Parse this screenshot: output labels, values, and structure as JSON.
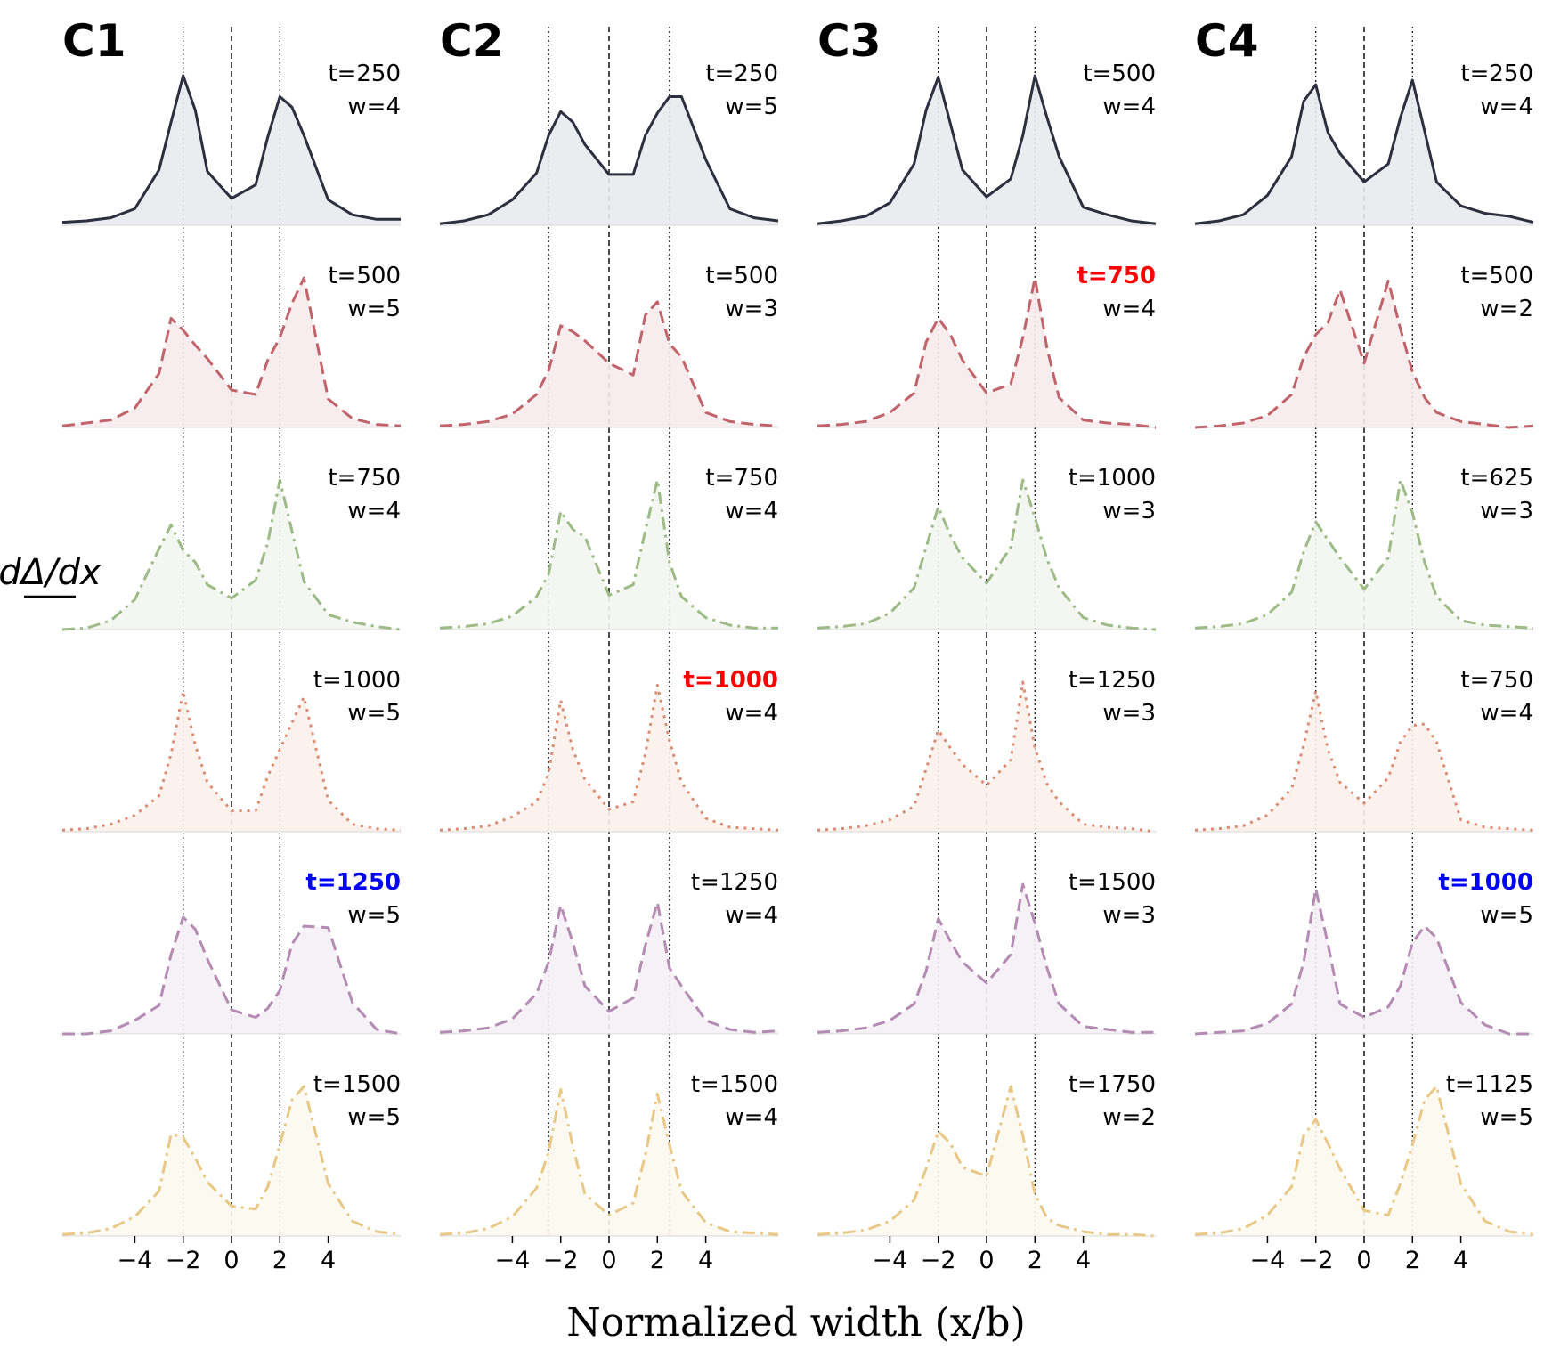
{
  "chart_data": {
    "type": "line",
    "xlabel": "Normalized width (x/b)",
    "ylabel": "dΔ/dx",
    "xlim": [
      -7,
      7
    ],
    "x_ticks": [
      -4,
      -2,
      0,
      2,
      4
    ],
    "x_tick_labels": [
      "−4",
      "−2",
      "0",
      "2",
      "4"
    ],
    "grid": false,
    "row_styles": [
      {
        "color": "#2b2f3e",
        "dash": "solid",
        "fill": "#e9eaee"
      },
      {
        "color": "#c0636b",
        "dash": "dashed",
        "fill": "#f6ebec"
      },
      {
        "color": "#9dba87",
        "dash": "dashdot",
        "fill": "#f3f6ef"
      },
      {
        "color": "#d98c73",
        "dash": "dotted",
        "fill": "#fbefeb"
      },
      {
        "color": "#b38bb3",
        "dash": "dashed",
        "fill": "#f5eff5"
      },
      {
        "color": "#e8c886",
        "dash": "dashdot",
        "fill": "#fcf8ee"
      }
    ],
    "highlight_colors": {
      "red": "#ff0000",
      "blue": "#0000ff"
    },
    "x": [
      -7,
      -6,
      -5,
      -4,
      -3,
      -2.5,
      -2,
      -1.5,
      -1,
      0,
      1,
      1.5,
      2,
      2.5,
      3,
      4,
      5,
      6,
      7
    ],
    "panels": [
      {
        "label": "C1",
        "vlines": [
          -2,
          0,
          2
        ],
        "rows": [
          {
            "t": "t=250",
            "w": "w=4",
            "highlight": null,
            "y": [
              0.02,
              0.03,
              0.05,
              0.11,
              0.37,
              0.69,
              1.0,
              0.77,
              0.36,
              0.18,
              0.27,
              0.59,
              0.86,
              0.79,
              0.6,
              0.17,
              0.07,
              0.04,
              0.04
            ]
          },
          {
            "t": "t=500",
            "w": "w=5",
            "highlight": null,
            "y": [
              0.01,
              0.03,
              0.05,
              0.13,
              0.36,
              0.73,
              0.65,
              0.55,
              0.46,
              0.25,
              0.22,
              0.45,
              0.6,
              0.83,
              1.0,
              0.19,
              0.06,
              0.02,
              0.01
            ]
          },
          {
            "t": "t=750",
            "w": "w=4",
            "highlight": null,
            "y": [
              0.0,
              0.01,
              0.06,
              0.2,
              0.54,
              0.7,
              0.53,
              0.45,
              0.3,
              0.21,
              0.33,
              0.58,
              1.0,
              0.66,
              0.32,
              0.1,
              0.05,
              0.02,
              0.0
            ]
          },
          {
            "t": "t=1000",
            "w": "w=5",
            "highlight": null,
            "y": [
              0.01,
              0.02,
              0.05,
              0.11,
              0.24,
              0.52,
              0.94,
              0.58,
              0.33,
              0.14,
              0.14,
              0.37,
              0.55,
              0.73,
              0.9,
              0.21,
              0.05,
              0.02,
              0.01
            ]
          },
          {
            "t": "t=1250",
            "w": "w=5",
            "highlight": "blue",
            "y": [
              0.0,
              0.0,
              0.02,
              0.09,
              0.19,
              0.53,
              0.78,
              0.7,
              0.5,
              0.16,
              0.11,
              0.17,
              0.29,
              0.6,
              0.72,
              0.71,
              0.21,
              0.03,
              0.0
            ]
          },
          {
            "t": "t=1500",
            "w": "w=5",
            "highlight": null,
            "y": [
              0.01,
              0.02,
              0.05,
              0.13,
              0.3,
              0.68,
              0.66,
              0.52,
              0.36,
              0.2,
              0.18,
              0.33,
              0.61,
              0.91,
              1.0,
              0.35,
              0.1,
              0.03,
              0.01
            ]
          }
        ]
      },
      {
        "label": "C2",
        "vlines": [
          -2.5,
          0,
          2.5
        ],
        "rows": [
          {
            "t": "t=250",
            "w": "w=5",
            "highlight": null,
            "y": [
              0.01,
              0.03,
              0.07,
              0.17,
              0.35,
              0.6,
              0.76,
              0.69,
              0.54,
              0.34,
              0.34,
              0.6,
              0.75,
              0.86,
              0.86,
              0.44,
              0.11,
              0.05,
              0.03
            ]
          },
          {
            "t": "t=500",
            "w": "w=3",
            "highlight": null,
            "y": [
              0.01,
              0.02,
              0.04,
              0.09,
              0.22,
              0.38,
              0.68,
              0.64,
              0.58,
              0.43,
              0.35,
              0.75,
              0.84,
              0.56,
              0.47,
              0.1,
              0.04,
              0.02,
              0.01
            ]
          },
          {
            "t": "t=750",
            "w": "w=4",
            "highlight": null,
            "y": [
              0.01,
              0.02,
              0.04,
              0.09,
              0.22,
              0.37,
              0.79,
              0.67,
              0.62,
              0.23,
              0.3,
              0.66,
              1.0,
              0.45,
              0.22,
              0.08,
              0.03,
              0.01,
              0.01
            ]
          },
          {
            "t": "t=1000",
            "w": "w=4",
            "highlight": "red",
            "y": [
              0.01,
              0.02,
              0.04,
              0.1,
              0.2,
              0.39,
              0.88,
              0.55,
              0.35,
              0.15,
              0.2,
              0.52,
              0.98,
              0.61,
              0.33,
              0.09,
              0.03,
              0.02,
              0.01
            ]
          },
          {
            "t": "t=1250",
            "w": "w=4",
            "highlight": null,
            "y": [
              0.01,
              0.02,
              0.04,
              0.1,
              0.27,
              0.48,
              0.86,
              0.61,
              0.32,
              0.15,
              0.24,
              0.59,
              0.88,
              0.44,
              0.32,
              0.09,
              0.03,
              0.01,
              0.02
            ]
          },
          {
            "t": "t=1500",
            "w": "w=4",
            "highlight": null,
            "y": [
              0.01,
              0.02,
              0.05,
              0.13,
              0.32,
              0.56,
              0.98,
              0.6,
              0.28,
              0.14,
              0.22,
              0.54,
              0.95,
              0.61,
              0.3,
              0.09,
              0.03,
              0.02,
              0.01
            ]
          }
        ]
      },
      {
        "label": "C3",
        "vlines": [
          -2,
          0,
          2
        ],
        "rows": [
          {
            "t": "t=500",
            "w": "w=4",
            "highlight": null,
            "y": [
              0.01,
              0.03,
              0.06,
              0.15,
              0.41,
              0.77,
              0.99,
              0.68,
              0.37,
              0.19,
              0.31,
              0.6,
              1.0,
              0.72,
              0.46,
              0.12,
              0.07,
              0.03,
              0.01
            ]
          },
          {
            "t": "t=750",
            "w": "w=4",
            "highlight": "red",
            "y": [
              0.01,
              0.02,
              0.04,
              0.1,
              0.23,
              0.57,
              0.73,
              0.62,
              0.45,
              0.23,
              0.29,
              0.6,
              1.0,
              0.53,
              0.2,
              0.05,
              0.03,
              0.02,
              0.0
            ]
          },
          {
            "t": "t=1000",
            "w": "w=3",
            "highlight": null,
            "y": [
              0.01,
              0.02,
              0.04,
              0.11,
              0.28,
              0.55,
              0.82,
              0.63,
              0.48,
              0.31,
              0.55,
              1.0,
              0.75,
              0.47,
              0.28,
              0.08,
              0.03,
              0.01,
              0.0
            ]
          },
          {
            "t": "t=1250",
            "w": "w=3",
            "highlight": null,
            "y": [
              0.01,
              0.02,
              0.04,
              0.08,
              0.17,
              0.42,
              0.68,
              0.56,
              0.45,
              0.31,
              0.48,
              1.0,
              0.56,
              0.32,
              0.2,
              0.05,
              0.03,
              0.02,
              0.0
            ]
          },
          {
            "t": "t=1500",
            "w": "w=3",
            "highlight": null,
            "y": [
              0.01,
              0.02,
              0.04,
              0.09,
              0.2,
              0.42,
              0.77,
              0.62,
              0.48,
              0.34,
              0.53,
              1.0,
              0.74,
              0.44,
              0.2,
              0.05,
              0.03,
              0.01,
              0.01
            ]
          },
          {
            "t": "t=1750",
            "w": "w=2",
            "highlight": null,
            "y": [
              0.01,
              0.02,
              0.04,
              0.1,
              0.24,
              0.45,
              0.7,
              0.62,
              0.46,
              0.4,
              1.0,
              0.67,
              0.28,
              0.12,
              0.07,
              0.03,
              0.01,
              0.01,
              0.0
            ]
          }
        ]
      },
      {
        "label": "C4",
        "vlines": [
          -2,
          0,
          2
        ],
        "rows": [
          {
            "t": "t=250",
            "w": "w=4",
            "highlight": null,
            "y": [
              0.01,
              0.03,
              0.07,
              0.2,
              0.46,
              0.83,
              0.94,
              0.62,
              0.48,
              0.29,
              0.41,
              0.72,
              0.97,
              0.63,
              0.29,
              0.13,
              0.08,
              0.06,
              0.02
            ]
          },
          {
            "t": "t=500",
            "w": "w=2",
            "highlight": null,
            "y": [
              0.0,
              0.01,
              0.03,
              0.08,
              0.22,
              0.47,
              0.62,
              0.7,
              0.92,
              0.43,
              0.98,
              0.66,
              0.37,
              0.2,
              0.1,
              0.04,
              0.02,
              0.0,
              0.01
            ]
          },
          {
            "t": "t=625",
            "w": "w=3",
            "highlight": null,
            "y": [
              0.01,
              0.02,
              0.04,
              0.1,
              0.25,
              0.52,
              0.72,
              0.6,
              0.48,
              0.27,
              0.48,
              1.0,
              0.78,
              0.45,
              0.22,
              0.06,
              0.03,
              0.02,
              0.01
            ]
          },
          {
            "t": "t=750",
            "w": "w=4",
            "highlight": null,
            "y": [
              0.01,
              0.02,
              0.04,
              0.11,
              0.29,
              0.58,
              0.94,
              0.55,
              0.33,
              0.19,
              0.36,
              0.6,
              0.71,
              0.72,
              0.6,
              0.08,
              0.03,
              0.02,
              0.01
            ]
          },
          {
            "t": "t=1000",
            "w": "w=5",
            "highlight": "blue",
            "y": [
              0.0,
              0.01,
              0.02,
              0.07,
              0.2,
              0.48,
              0.97,
              0.6,
              0.2,
              0.11,
              0.18,
              0.32,
              0.61,
              0.72,
              0.64,
              0.21,
              0.06,
              0.0,
              0.0
            ]
          },
          {
            "t": "t=1125",
            "w": "w=5",
            "highlight": null,
            "y": [
              0.01,
              0.02,
              0.05,
              0.14,
              0.33,
              0.67,
              0.78,
              0.62,
              0.45,
              0.17,
              0.14,
              0.35,
              0.61,
              0.91,
              1.0,
              0.35,
              0.1,
              0.03,
              0.01
            ]
          }
        ]
      }
    ]
  }
}
